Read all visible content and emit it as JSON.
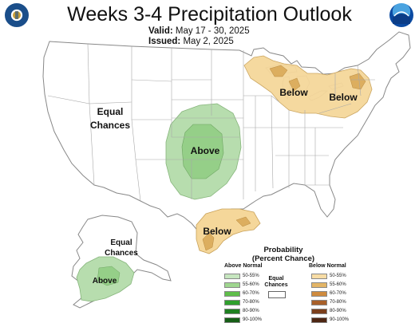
{
  "header": {
    "title": "Weeks 3-4 Precipitation Outlook",
    "valid_label": "Valid:",
    "valid_value": "May 17 - 30, 2025",
    "issued_label": "Issued:",
    "issued_value": "May 2, 2025"
  },
  "logos": {
    "left": "commerce-department-seal-icon",
    "right": "noaa-logo-icon"
  },
  "map": {
    "labels": {
      "equal_chances_line1": "Equal",
      "equal_chances_line2": "Chances",
      "above_central": "Above",
      "below_great_lakes_west": "Below",
      "below_great_lakes_east": "Below",
      "below_texas": "Below",
      "alaska_equal_line1": "Equal",
      "alaska_equal_line2": "Chances",
      "alaska_above": "Above"
    },
    "colors": {
      "above_50_55": "#b7ddae",
      "above_55_60": "#95cf88",
      "below_50_55": "#f5d79a",
      "below_55_60": "#dcae5f",
      "land": "#ffffff",
      "border": "#9a9a9a"
    }
  },
  "legend": {
    "title_line1": "Probability",
    "title_line2": "(Percent Chance)",
    "above_head": "Above Normal",
    "below_head": "Below Normal",
    "equal_line1": "Equal",
    "equal_line2": "Chances",
    "above_rows": [
      {
        "label": "50-55%",
        "color": "#c6e6bf"
      },
      {
        "label": "55-60%",
        "color": "#9fd68f"
      },
      {
        "label": "60-70%",
        "color": "#5fbe4a"
      },
      {
        "label": "70-80%",
        "color": "#2fa02d"
      },
      {
        "label": "80-90%",
        "color": "#1e7f20"
      },
      {
        "label": "90-100%",
        "color": "#165e16"
      }
    ],
    "below_rows": [
      {
        "label": "50-55%",
        "color": "#f7dca5"
      },
      {
        "label": "55-60%",
        "color": "#e3b567"
      },
      {
        "label": "60-70%",
        "color": "#cf8b3f"
      },
      {
        "label": "70-80%",
        "color": "#a8602a"
      },
      {
        "label": "80-90%",
        "color": "#7b3f1c"
      },
      {
        "label": "90-100%",
        "color": "#4e2613"
      }
    ]
  }
}
